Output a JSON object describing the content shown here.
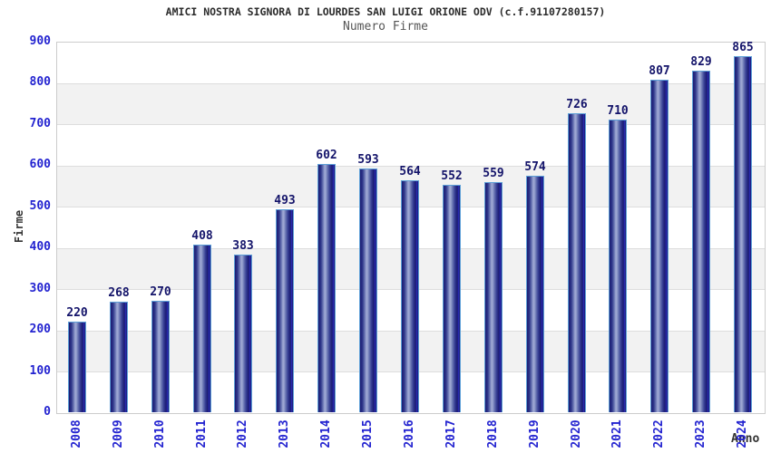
{
  "header": {
    "title": "AMICI NOSTRA SIGNORA DI LOURDES SAN LUIGI ORIONE ODV (c.f.91107280157)",
    "subtitle": "Numero Firme"
  },
  "axes": {
    "y_label": "Firme",
    "x_label": "Anno"
  },
  "chart_data": {
    "type": "bar",
    "title": "AMICI NOSTRA SIGNORA DI LOURDES SAN LUIGI ORIONE ODV (c.f.91107280157)",
    "subtitle": "Numero Firme",
    "xlabel": "Anno",
    "ylabel": "Firme",
    "categories": [
      "2008",
      "2009",
      "2010",
      "2011",
      "2012",
      "2013",
      "2014",
      "2015",
      "2016",
      "2017",
      "2018",
      "2019",
      "2020",
      "2021",
      "2022",
      "2023",
      "2024"
    ],
    "values": [
      220,
      268,
      270,
      408,
      383,
      493,
      602,
      593,
      564,
      552,
      559,
      574,
      726,
      710,
      807,
      829,
      865
    ],
    "ylim": [
      0,
      900
    ],
    "ytick_step": 100,
    "grid": true,
    "legend": false,
    "colors": {
      "bar_dark": "#1b1b72",
      "bar_light": "#9ca6d2",
      "bar_border": "#5d9fd7",
      "tick_label": "#2323d0",
      "value_label": "#14146a",
      "band_gray": "#f2f2f2",
      "band_white": "#ffffff",
      "gridline": "#dddddd",
      "plot_border": "#cccccc",
      "title_text": "#2b2b2b",
      "subtitle_text": "#555555",
      "axis_label_text": "#333333"
    }
  }
}
